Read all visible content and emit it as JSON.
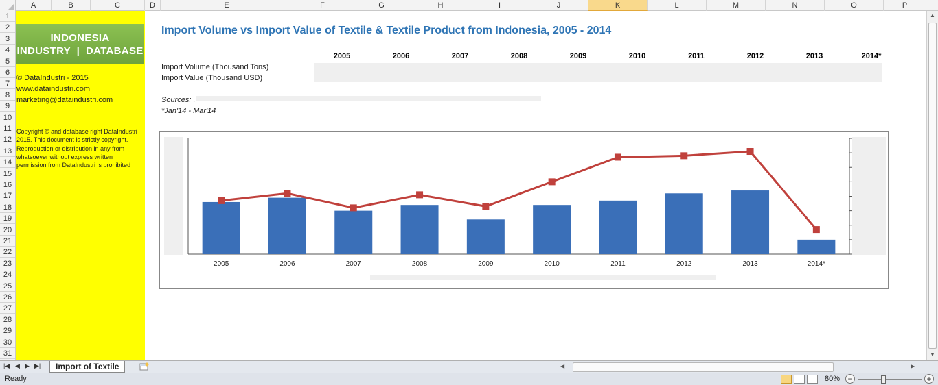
{
  "spreadsheet": {
    "columns": [
      "A",
      "B",
      "C",
      "D",
      "E",
      "F",
      "G",
      "H",
      "I",
      "J",
      "K",
      "L",
      "M",
      "N",
      "O",
      "P"
    ],
    "selected_column": "K",
    "rows": [
      "1",
      "2",
      "3",
      "4",
      "5",
      "6",
      "7",
      "8",
      "9",
      "10",
      "11",
      "12",
      "13",
      "14",
      "15",
      "16",
      "17",
      "18",
      "19",
      "20",
      "21",
      "22",
      "23",
      "24",
      "25",
      "26",
      "27",
      "28",
      "29",
      "30",
      "31"
    ]
  },
  "sidebar": {
    "logo_line1": "INDONESIA",
    "logo_line2": "INDUSTRY  |  DATABASE",
    "copy_short": "© DataIndustri - 2015",
    "website": "www.dataindustri.com",
    "email": "marketing@dataindustri.com",
    "copyright_notice": "Copyright © and database right DataIndustri 2015. This document is strictly copyright. Reproduction or distribution in any from whatsoever without express written permission from DataIndustri is prohibited",
    "background_color": "#ffff00"
  },
  "sheet": {
    "title": "Import Volume vs Import Value of Textile & Textile Product from Indonesia, 2005 - 2014",
    "years": [
      "2005",
      "2006",
      "2007",
      "2008",
      "2009",
      "2010",
      "2011",
      "2012",
      "2013",
      "2014*"
    ],
    "row_volume_label": "Import Volume (Thousand Tons)",
    "row_value_label": "Import Value (Thousand USD)",
    "sources_label": "Sources: .",
    "note": "*Jan'14 - Mar'14"
  },
  "chart_data": {
    "type": "bar",
    "categories": [
      "2005",
      "2006",
      "2007",
      "2008",
      "2009",
      "2010",
      "2011",
      "2012",
      "2013",
      "2014*"
    ],
    "series": [
      {
        "type": "bar",
        "color": "#3a6fb8",
        "values": [
          36,
          39,
          30,
          34,
          24,
          34,
          37,
          42,
          44,
          10
        ]
      },
      {
        "type": "line",
        "color": "#c0413c",
        "values": [
          37,
          42,
          32,
          41,
          33,
          50,
          67,
          68,
          71,
          17
        ]
      }
    ],
    "ylim": [
      0,
      80
    ],
    "title": "",
    "xlabel": "",
    "ylabel": "",
    "grid": false
  },
  "tabs": {
    "active_sheet": "Import of Textile"
  },
  "statusbar": {
    "status": "Ready",
    "zoom": "80%",
    "zoom_level_fraction": 0.8,
    "view_buttons": [
      "normal-view",
      "page-layout-view",
      "page-break-view"
    ]
  }
}
